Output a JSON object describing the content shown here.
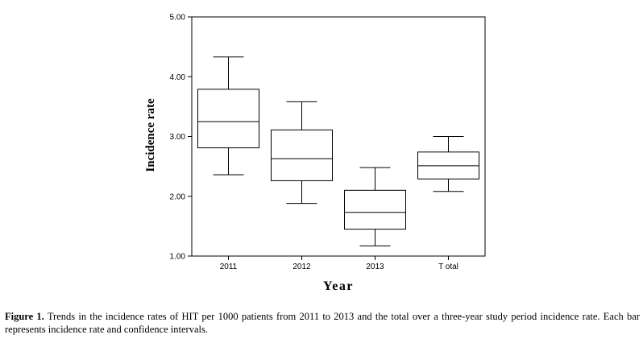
{
  "chart_data": {
    "type": "boxplot",
    "xlabel": "Year",
    "ylabel": "Incidence rate",
    "ylim": [
      1.0,
      5.0
    ],
    "yticks": [
      "1.00",
      "2.00",
      "3.00",
      "4.00",
      "5.00"
    ],
    "tick_values": [
      1,
      2,
      3,
      4,
      5
    ],
    "categories": [
      "2011",
      "2012",
      "2013",
      "T otal"
    ],
    "boxes": [
      {
        "category": "2011",
        "whisker_low": 2.36,
        "q1": 2.81,
        "median": 3.25,
        "q3": 3.79,
        "whisker_high": 4.33
      },
      {
        "category": "2012",
        "whisker_low": 1.88,
        "q1": 2.26,
        "median": 2.63,
        "q3": 3.11,
        "whisker_high": 3.58
      },
      {
        "category": "2013",
        "whisker_low": 1.17,
        "q1": 1.45,
        "median": 1.73,
        "q3": 2.1,
        "whisker_high": 2.48
      },
      {
        "category": "T otal",
        "whisker_low": 2.08,
        "q1": 2.29,
        "median": 2.51,
        "q3": 2.74,
        "whisker_high": 3.0
      }
    ],
    "grid": false,
    "legend": "none"
  },
  "caption": {
    "label": "Figure 1.",
    "text": " Trends in the incidence rates of HIT per 1000 patients from 2011 to 2013 and the total over a three-year study period incidence rate. Each bar represents incidence rate and confidence intervals."
  },
  "colors": {
    "line": "#000000",
    "background": "#ffffff"
  }
}
